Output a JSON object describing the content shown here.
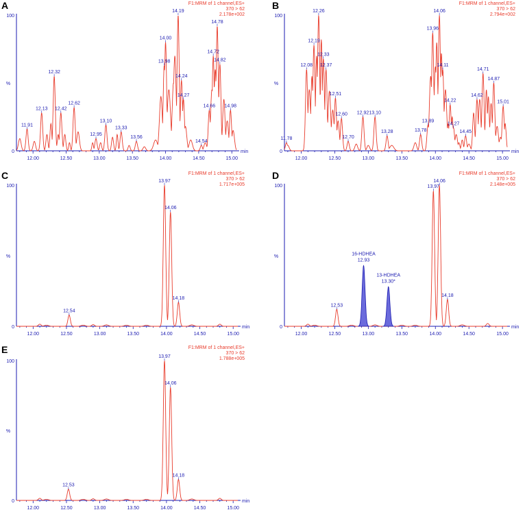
{
  "colors": {
    "trace": "#e83a2a",
    "axis": "#1a1ab0",
    "peak_label": "#1a1ab0",
    "header": "#e83a2a",
    "fill": "#6b6bdc"
  },
  "chart_data": [
    {
      "panel": "A",
      "type": "line",
      "header": [
        "F1:MRM of 1 channel,ES+",
        "370 > 62",
        "2.178e+002"
      ],
      "xlim": [
        11.75,
        15.07
      ],
      "ylim": [
        0,
        100
      ],
      "xticks": [
        "12.00",
        "12.50",
        "13.00",
        "13.50",
        "14.00",
        "14.50",
        "15.00"
      ],
      "xunit": "min",
      "ylabel": "%",
      "ytop": "100",
      "ybottom": "0",
      "peaks": [
        {
          "rt": 11.91,
          "y": 16,
          "label": "11.91"
        },
        {
          "rt": 12.13,
          "y": 28,
          "label": "12.13"
        },
        {
          "rt": 12.32,
          "y": 55,
          "label": "12.32"
        },
        {
          "rt": 12.42,
          "y": 28,
          "label": "12.42"
        },
        {
          "rt": 12.62,
          "y": 32,
          "label": "12.62"
        },
        {
          "rt": 12.95,
          "y": 9,
          "label": "12.95"
        },
        {
          "rt": 13.1,
          "y": 19,
          "label": "13.10"
        },
        {
          "rt": 13.33,
          "y": 14,
          "label": "13.33"
        },
        {
          "rt": 13.56,
          "y": 7,
          "label": "13.56"
        },
        {
          "rt": 13.98,
          "y": 63,
          "label": "13.98"
        },
        {
          "rt": 14.0,
          "y": 80,
          "label": "14.00"
        },
        {
          "rt": 14.19,
          "y": 100,
          "label": "14.19"
        },
        {
          "rt": 14.24,
          "y": 52,
          "label": "14.24"
        },
        {
          "rt": 14.27,
          "y": 38,
          "label": "14.27"
        },
        {
          "rt": 14.54,
          "y": 4,
          "label": "14.54"
        },
        {
          "rt": 14.66,
          "y": 30,
          "label": "14.66"
        },
        {
          "rt": 14.72,
          "y": 70,
          "label": "14.72"
        },
        {
          "rt": 14.78,
          "y": 92,
          "label": "14.78"
        },
        {
          "rt": 14.82,
          "y": 64,
          "label": "14.82"
        },
        {
          "rt": 14.98,
          "y": 30,
          "label": "14.98"
        }
      ]
    },
    {
      "panel": "B",
      "type": "line",
      "header": [
        "F1:MRM of 1 channel,ES+",
        "370 > 62",
        "2.794e+002"
      ],
      "xlim": [
        11.75,
        15.07
      ],
      "ylim": [
        0,
        100
      ],
      "xticks": [
        "12.00",
        "12.50",
        "13.00",
        "13.50",
        "14.00",
        "14.50",
        "15.00"
      ],
      "xunit": "min",
      "ylabel": "%",
      "ytop": "100",
      "ybottom": "0",
      "peaks": [
        {
          "rt": 11.78,
          "y": 6,
          "label": "11.78"
        },
        {
          "rt": 12.08,
          "y": 60,
          "label": "12.08"
        },
        {
          "rt": 12.19,
          "y": 78,
          "label": "12.19"
        },
        {
          "rt": 12.26,
          "y": 100,
          "label": "12.26"
        },
        {
          "rt": 12.33,
          "y": 68,
          "label": "12.33"
        },
        {
          "rt": 12.37,
          "y": 60,
          "label": "12.37"
        },
        {
          "rt": 12.51,
          "y": 39,
          "label": "12.51"
        },
        {
          "rt": 12.6,
          "y": 24,
          "label": "12.60"
        },
        {
          "rt": 12.7,
          "y": 7,
          "label": "12.70"
        },
        {
          "rt": 12.92,
          "y": 25,
          "label": "12.92"
        },
        {
          "rt": 13.1,
          "y": 25,
          "label": "13.10"
        },
        {
          "rt": 13.28,
          "y": 11,
          "label": "13.28"
        },
        {
          "rt": 13.78,
          "y": 12,
          "label": "13.78"
        },
        {
          "rt": 13.89,
          "y": 19,
          "label": "13.89"
        },
        {
          "rt": 13.96,
          "y": 87,
          "label": "13.96"
        },
        {
          "rt": 14.06,
          "y": 100,
          "label": "14.06"
        },
        {
          "rt": 14.11,
          "y": 60,
          "label": "14.11"
        },
        {
          "rt": 14.22,
          "y": 34,
          "label": "14.22"
        },
        {
          "rt": 14.27,
          "y": 17,
          "label": "14.27"
        },
        {
          "rt": 14.45,
          "y": 11,
          "label": "14.45"
        },
        {
          "rt": 14.62,
          "y": 38,
          "label": "14.62"
        },
        {
          "rt": 14.71,
          "y": 57,
          "label": "14.71"
        },
        {
          "rt": 14.87,
          "y": 50,
          "label": "14.87"
        },
        {
          "rt": 15.01,
          "y": 33,
          "label": "15.01"
        }
      ]
    },
    {
      "panel": "C",
      "type": "line",
      "header": [
        "F1:MRM of 1 channel,ES+",
        "370 > 62",
        "1.717e+005"
      ],
      "xlim": [
        11.75,
        15.07
      ],
      "ylim": [
        0,
        100
      ],
      "xticks": [
        "12.00",
        "12.50",
        "13.00",
        "13.50",
        "14.00",
        "14.50",
        "15.00"
      ],
      "xunit": "min",
      "ylabel": "%",
      "ytop": "100",
      "ybottom": "0",
      "peaks": [
        {
          "rt": 12.54,
          "y": 8,
          "label": "12.54"
        },
        {
          "rt": 13.97,
          "y": 100,
          "label": "13.97"
        },
        {
          "rt": 14.06,
          "y": 81,
          "label": "14.06"
        },
        {
          "rt": 14.18,
          "y": 17,
          "label": "14.18"
        }
      ]
    },
    {
      "panel": "D",
      "type": "line",
      "header": [
        "F1:MRM of 1 channel,ES+",
        "370 > 62",
        "2.148e+005"
      ],
      "xlim": [
        11.75,
        15.07
      ],
      "ylim": [
        0,
        100
      ],
      "xticks": [
        "12.00",
        "12.50",
        "13.00",
        "13.50",
        "14.00",
        "14.50",
        "15.00"
      ],
      "xunit": "min",
      "ylabel": "%",
      "ytop": "100",
      "ybottom": "0",
      "peaks": [
        {
          "rt": 12.53,
          "y": 12,
          "label": "12.53"
        },
        {
          "rt": 13.97,
          "y": 96,
          "label": "13.97"
        },
        {
          "rt": 14.06,
          "y": 100,
          "label": "14.06"
        },
        {
          "rt": 14.18,
          "y": 19,
          "label": "14.18"
        }
      ],
      "filled_peaks": [
        {
          "rt": 12.93,
          "y": 43,
          "name": "16-HDHEA",
          "label": "12.93"
        },
        {
          "rt": 13.3,
          "y": 28,
          "name": "13-HDHEA",
          "label": "13.30*"
        }
      ]
    },
    {
      "panel": "E",
      "type": "line",
      "header": [
        "F1:MRM of 1 channel,ES+",
        "370 > 62",
        "1.788e+005"
      ],
      "xlim": [
        11.75,
        15.07
      ],
      "ylim": [
        0,
        100
      ],
      "xticks": [
        "12.00",
        "12.50",
        "13.00",
        "13.50",
        "14.00",
        "14.50",
        "15.00"
      ],
      "xunit": "min",
      "ylabel": "%",
      "ytop": "100",
      "ybottom": "0",
      "peaks": [
        {
          "rt": 12.53,
          "y": 8,
          "label": "12.53"
        },
        {
          "rt": 13.97,
          "y": 100,
          "label": "13.97"
        },
        {
          "rt": 14.06,
          "y": 81,
          "label": "14.06"
        },
        {
          "rt": 14.18,
          "y": 15,
          "label": "14.18"
        }
      ]
    }
  ]
}
